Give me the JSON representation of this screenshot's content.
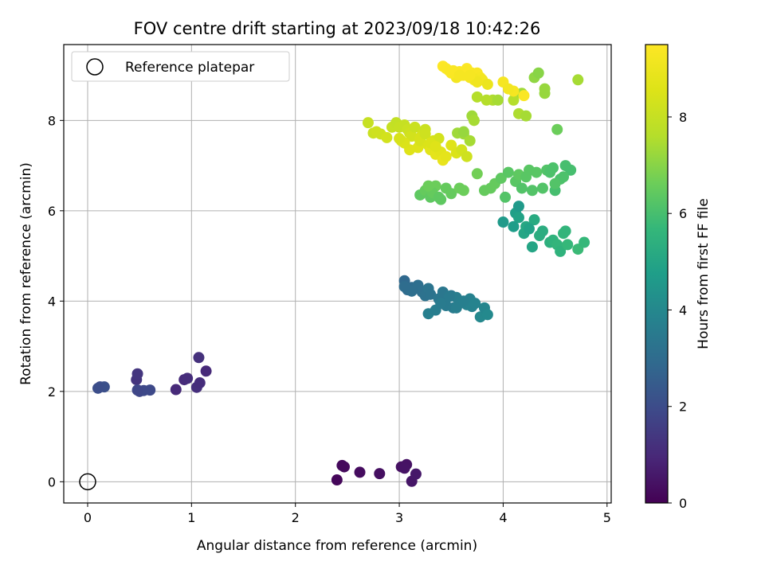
{
  "chart_data": {
    "type": "scatter",
    "title": "FOV centre drift starting at 2023/09/18 10:42:26",
    "xlabel": "Angular distance from reference (arcmin)",
    "ylabel": "Rotation from reference (arcmin)",
    "xlim": [
      -0.23,
      5.04
    ],
    "ylim": [
      -0.47,
      9.68
    ],
    "xticks": [
      0,
      1,
      2,
      3,
      4,
      5
    ],
    "yticks": [
      0,
      2,
      4,
      6,
      8
    ],
    "grid": true,
    "colormap": "viridis",
    "colorbar": {
      "label": "Hours from first FF file",
      "min": 0,
      "max": 9.5,
      "ticks": [
        0,
        2,
        4,
        6,
        8
      ]
    },
    "legend": {
      "position": "top-left",
      "entries": [
        {
          "label": "Reference platepar",
          "marker": "open-circle"
        }
      ]
    },
    "reference_point": {
      "x": 0,
      "y": 0
    },
    "series": [
      {
        "x": [
          2.4,
          2.45,
          2.47,
          2.62,
          2.81,
          3.02,
          3.07,
          3.05,
          3.12,
          3.16
        ],
        "y": [
          0.04,
          0.36,
          0.33,
          0.21,
          0.18,
          0.33,
          0.38,
          0.3,
          0.01,
          0.17
        ],
        "c": [
          0.15,
          0.2,
          0.22,
          0.28,
          0.33,
          0.38,
          0.42,
          0.45,
          0.5,
          0.55
        ]
      },
      {
        "x": [
          0.85,
          0.93,
          0.96,
          1.05,
          1.07,
          1.08,
          1.14,
          0.47,
          0.48
        ],
        "y": [
          2.04,
          2.26,
          2.29,
          2.09,
          2.75,
          2.19,
          2.45,
          2.26,
          2.39
        ],
        "c": [
          1.0,
          1.05,
          1.1,
          1.15,
          1.2,
          1.1,
          1.0,
          1.3,
          1.35
        ]
      },
      {
        "x": [
          0.12,
          0.16,
          0.5,
          0.54,
          0.6,
          0.48,
          0.1
        ],
        "y": [
          2.1,
          2.1,
          2.0,
          2.02,
          2.03,
          2.03,
          2.07
        ],
        "c": [
          2.0,
          2.1,
          1.8,
          1.9,
          1.9,
          1.85,
          2.05
        ]
      },
      {
        "x": [
          3.05,
          3.08,
          3.12,
          3.18,
          3.22,
          3.25,
          3.28,
          3.3,
          3.38,
          3.42,
          3.45,
          3.5,
          3.52,
          3.55,
          3.58,
          3.62,
          3.65,
          3.68,
          3.7,
          3.73,
          3.78,
          3.82,
          3.85,
          3.28,
          3.35,
          3.4,
          3.48,
          3.55,
          3.62,
          3.12,
          3.05
        ],
        "y": [
          4.45,
          4.25,
          4.3,
          4.35,
          4.2,
          4.12,
          4.28,
          4.15,
          4.05,
          4.2,
          3.9,
          4.12,
          3.85,
          4.08,
          3.95,
          4.0,
          3.92,
          4.05,
          3.88,
          3.95,
          3.65,
          3.85,
          3.7,
          3.72,
          3.8,
          3.95,
          4.1,
          3.85,
          4.0,
          4.22,
          4.32
        ],
        "c": [
          2.9,
          3.0,
          3.0,
          3.1,
          3.15,
          3.2,
          3.3,
          3.25,
          3.35,
          3.4,
          3.5,
          3.45,
          3.55,
          3.6,
          3.65,
          3.7,
          3.75,
          3.75,
          3.8,
          3.85,
          4.0,
          3.9,
          4.05,
          3.7,
          3.6,
          3.55,
          3.5,
          3.65,
          3.7,
          3.1,
          3.05
        ]
      },
      {
        "x": [
          4.0,
          4.12,
          4.15,
          4.2,
          4.22,
          4.28,
          4.3,
          4.35,
          4.38,
          4.45,
          4.48,
          4.52,
          4.55,
          4.58,
          4.62,
          4.72,
          4.78,
          4.6,
          4.1,
          4.15,
          4.25
        ],
        "y": [
          5.75,
          5.95,
          5.85,
          5.5,
          5.65,
          5.2,
          5.8,
          5.45,
          5.55,
          5.3,
          5.35,
          5.25,
          5.1,
          5.5,
          5.25,
          5.15,
          5.3,
          5.55,
          5.65,
          6.1,
          5.6
        ],
        "c": [
          4.6,
          4.8,
          4.9,
          5.0,
          5.1,
          5.0,
          5.2,
          5.3,
          5.3,
          5.4,
          5.5,
          5.6,
          5.5,
          5.6,
          5.7,
          5.8,
          5.7,
          5.6,
          4.7,
          4.6,
          4.9
        ]
      },
      {
        "x": [
          3.2,
          3.25,
          3.3,
          3.35,
          3.4,
          3.45,
          3.5,
          3.58,
          3.62,
          3.75,
          3.82,
          3.88,
          3.92,
          3.98,
          4.02,
          4.05,
          4.12,
          4.15,
          4.18,
          4.22,
          4.25,
          4.28,
          4.32,
          4.38,
          4.42,
          4.48,
          4.5,
          4.55,
          4.6,
          4.65,
          4.58,
          4.5,
          4.45,
          3.32,
          3.28,
          3.38
        ],
        "y": [
          6.35,
          6.45,
          6.3,
          6.55,
          6.25,
          6.5,
          6.38,
          6.5,
          6.45,
          6.82,
          6.45,
          6.5,
          6.6,
          6.72,
          6.3,
          6.85,
          6.65,
          6.8,
          6.5,
          6.75,
          6.9,
          6.45,
          6.85,
          6.5,
          6.9,
          6.95,
          6.45,
          6.7,
          7.0,
          6.9,
          6.75,
          6.6,
          6.85,
          6.4,
          6.55,
          6.3
        ],
        "c": [
          6.4,
          6.5,
          6.4,
          6.6,
          6.4,
          6.5,
          6.5,
          6.6,
          6.6,
          6.7,
          6.5,
          6.5,
          6.5,
          6.4,
          6.2,
          6.3,
          6.3,
          6.4,
          6.2,
          6.3,
          6.3,
          6.2,
          6.3,
          6.2,
          6.2,
          6.1,
          6.0,
          6.1,
          6.0,
          6.0,
          6.1,
          6.2,
          6.1,
          6.5,
          6.6,
          6.4
        ]
      },
      {
        "x": [
          3.7,
          3.72,
          3.75,
          3.9,
          3.95,
          4.1,
          4.15,
          4.22,
          4.3,
          4.34,
          4.4,
          4.52,
          4.72,
          3.62,
          3.68,
          3.84,
          4.18,
          4.4,
          3.56,
          3.62
        ],
        "y": [
          8.1,
          8.0,
          8.52,
          8.45,
          8.45,
          8.45,
          8.15,
          8.1,
          8.95,
          9.05,
          8.6,
          7.8,
          8.9,
          7.7,
          7.55,
          8.45,
          8.6,
          8.7,
          7.72,
          7.75
        ],
        "c": [
          7.3,
          7.4,
          7.6,
          7.5,
          7.4,
          7.6,
          7.5,
          7.4,
          7.1,
          7.0,
          7.2,
          6.6,
          7.4,
          7.3,
          7.4,
          7.6,
          7.3,
          7.2,
          7.3,
          7.2
        ]
      },
      {
        "x": [
          2.7,
          2.75,
          2.78,
          2.82,
          2.88,
          2.93,
          2.97,
          3.0,
          3.02,
          3.05,
          3.08,
          3.1,
          3.12,
          3.15,
          3.18,
          3.2,
          3.22,
          3.25,
          3.28,
          3.3,
          3.33,
          3.35,
          3.38,
          3.4,
          3.42,
          3.45,
          3.5,
          3.55,
          3.6,
          3.65,
          3.2,
          3.1,
          3.05,
          3.0,
          3.25,
          3.3,
          3.35
        ],
        "y": [
          7.95,
          7.72,
          7.75,
          7.7,
          7.62,
          7.85,
          7.95,
          7.85,
          7.55,
          7.9,
          7.8,
          7.72,
          7.65,
          7.85,
          7.4,
          7.55,
          7.68,
          7.8,
          7.45,
          7.35,
          7.55,
          7.25,
          7.6,
          7.3,
          7.12,
          7.2,
          7.45,
          7.28,
          7.35,
          7.2,
          7.6,
          7.35,
          7.5,
          7.6,
          7.7,
          7.5,
          7.42
        ],
        "c": [
          8.0,
          8.1,
          8.2,
          8.2,
          8.3,
          8.0,
          7.9,
          8.0,
          8.4,
          8.0,
          8.1,
          8.2,
          8.3,
          8.1,
          8.6,
          8.4,
          8.3,
          8.1,
          8.5,
          8.7,
          8.4,
          8.8,
          8.3,
          8.7,
          8.9,
          8.8,
          8.6,
          8.5,
          8.3,
          8.2,
          8.4,
          8.6,
          8.5,
          8.4,
          8.2,
          8.5,
          8.6
        ]
      },
      {
        "x": [
          3.42,
          3.45,
          3.48,
          3.52,
          3.55,
          3.58,
          3.62,
          3.65,
          3.68,
          3.7,
          3.72,
          3.75,
          3.78,
          3.8,
          3.85,
          4.0,
          4.1,
          4.2,
          3.55,
          3.6,
          3.65,
          3.72,
          3.75,
          3.68,
          3.5,
          3.58,
          4.05
        ],
        "y": [
          9.2,
          9.15,
          9.1,
          9.1,
          9.05,
          9.08,
          9.0,
          9.15,
          8.95,
          9.05,
          8.9,
          9.05,
          8.95,
          8.9,
          8.8,
          8.85,
          8.65,
          8.55,
          8.95,
          9.0,
          9.1,
          8.92,
          8.85,
          9.0,
          9.05,
          9.0,
          8.7
        ],
        "c": [
          9.5,
          9.45,
          9.4,
          9.4,
          9.35,
          9.45,
          9.3,
          9.5,
          9.3,
          9.4,
          9.2,
          9.35,
          9.3,
          9.2,
          9.0,
          9.3,
          9.3,
          9.4,
          9.2,
          9.3,
          9.4,
          9.2,
          9.1,
          9.3,
          9.4,
          9.3,
          9.2
        ]
      }
    ]
  }
}
